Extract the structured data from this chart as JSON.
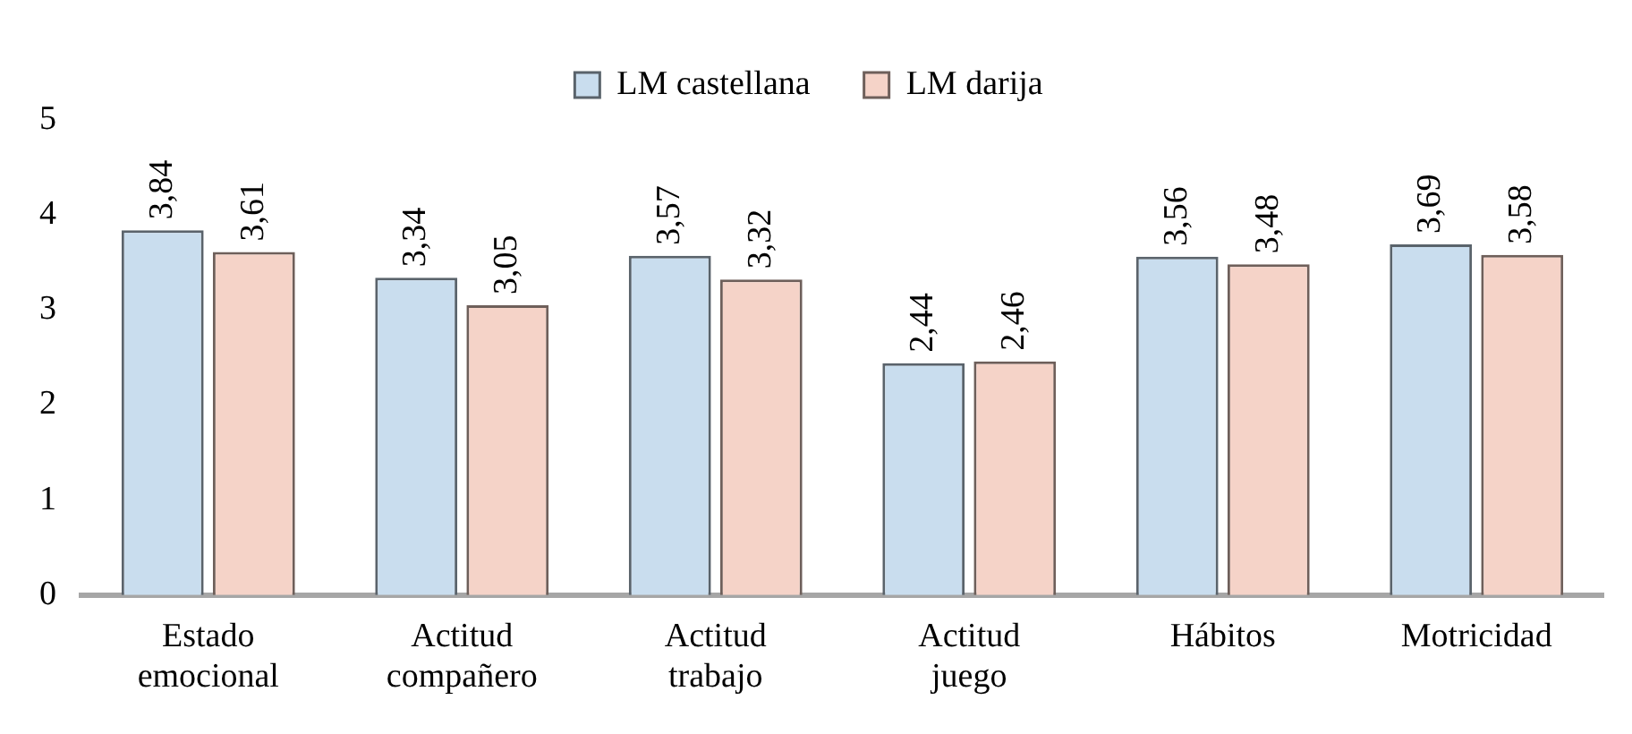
{
  "chart_data": {
    "type": "bar",
    "categories": [
      "Estado emocional",
      "Actitud compañero",
      "Actitud trabajo",
      "Actitud juego",
      "Hábitos",
      "Motricidad"
    ],
    "series": [
      {
        "name": "LM castellana",
        "color": "#c9ddee",
        "values": [
          3.84,
          3.34,
          3.57,
          2.44,
          3.56,
          3.69
        ],
        "value_labels": [
          "3,84",
          "3,34",
          "3,57",
          "2,44",
          "3,56",
          "3,69"
        ]
      },
      {
        "name": "LM darija",
        "color": "#f5d3c8",
        "values": [
          3.61,
          3.05,
          3.32,
          2.46,
          3.48,
          3.58
        ],
        "value_labels": [
          "3,61",
          "3,05",
          "3,32",
          "2,46",
          "3,48",
          "3,58"
        ]
      }
    ],
    "ylim": [
      0,
      5
    ],
    "yticks": [
      0,
      1,
      2,
      3,
      4,
      5
    ],
    "grid": false,
    "legend": "top"
  }
}
